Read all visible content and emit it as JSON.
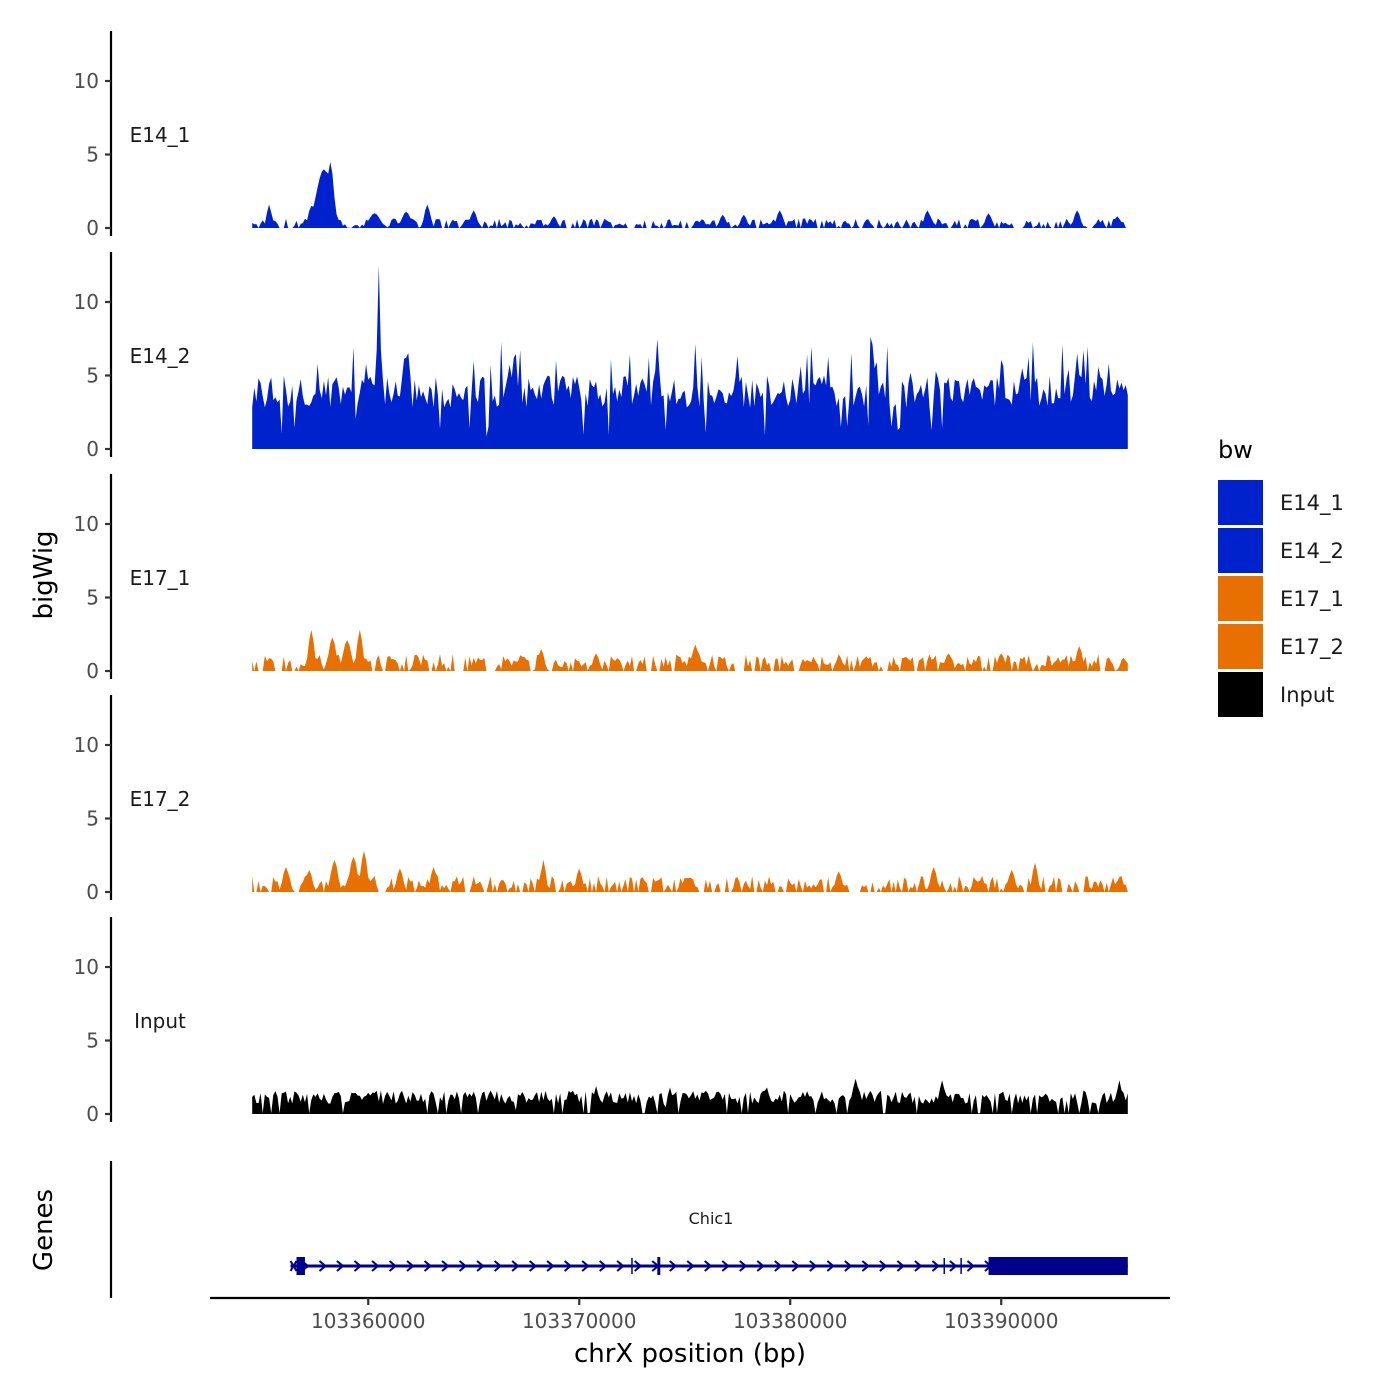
{
  "chart_data": {
    "type": "area",
    "title": "",
    "ylabel": "bigWig",
    "xlabel": "chrX position (bp)",
    "genes_label": "Genes",
    "ylim": [
      0,
      13
    ],
    "yticks": [
      0,
      5,
      10
    ],
    "xlim": [
      103352500,
      103398000
    ],
    "xticks": [
      103360000,
      103370000,
      103380000,
      103390000
    ],
    "signal_range": [
      103354500,
      103396000
    ],
    "tracks": [
      {
        "name": "E14_1",
        "color": "#0022CC",
        "baseline": 0.1,
        "peaks": [
          [
            103357900,
            4.0,
            350
          ],
          [
            103358200,
            4.5,
            160
          ],
          [
            103357300,
            1.5,
            140
          ],
          [
            103360300,
            1.0,
            250
          ],
          [
            103361800,
            1.1,
            200
          ],
          [
            103362800,
            1.6,
            130
          ],
          [
            103355300,
            1.6,
            110
          ],
          [
            103365000,
            1.2,
            140
          ],
          [
            103368800,
            0.8,
            140
          ],
          [
            103376800,
            0.9,
            140
          ],
          [
            103377800,
            0.9,
            140
          ],
          [
            103379500,
            1.2,
            140
          ],
          [
            103386500,
            1.2,
            140
          ],
          [
            103389400,
            1.0,
            140
          ],
          [
            103393600,
            1.2,
            140
          ],
          [
            103395500,
            0.8,
            140
          ]
        ]
      },
      {
        "name": "E14_2",
        "color": "#0022CC",
        "baseline": 2.8,
        "peaks": [
          [
            103360500,
            12.5,
            90
          ],
          [
            103360100,
            4.8,
            250
          ],
          [
            103359100,
            4.2,
            250
          ],
          [
            103366700,
            5.2,
            280
          ],
          [
            103373700,
            7.5,
            120
          ],
          [
            103384000,
            5.5,
            180
          ],
          [
            103385700,
            5.2,
            180
          ],
          [
            103391000,
            5.5,
            180
          ],
          [
            103393600,
            6.5,
            140
          ],
          [
            103395800,
            4.0,
            160
          ]
        ]
      },
      {
        "name": "E17_1",
        "color": "#E87000",
        "baseline": 0.25,
        "peaks": [
          [
            103357300,
            2.8,
            130
          ],
          [
            103358300,
            2.3,
            160
          ],
          [
            103359000,
            2.1,
            180
          ],
          [
            103359600,
            2.8,
            130
          ],
          [
            103362300,
            1.1,
            140
          ],
          [
            103366600,
            0.8,
            160
          ],
          [
            103368200,
            1.5,
            130
          ],
          [
            103370800,
            1.2,
            140
          ],
          [
            103375500,
            1.8,
            140
          ],
          [
            103383600,
            1.0,
            160
          ],
          [
            103387500,
            1.2,
            160
          ],
          [
            103390000,
            1.2,
            160
          ],
          [
            103393700,
            1.7,
            140
          ],
          [
            103395800,
            0.9,
            140
          ]
        ]
      },
      {
        "name": "E17_2",
        "color": "#E87000",
        "baseline": 0.2,
        "peaks": [
          [
            103356100,
            1.7,
            140
          ],
          [
            103357200,
            1.5,
            140
          ],
          [
            103358400,
            2.2,
            150
          ],
          [
            103359300,
            2.4,
            170
          ],
          [
            103359800,
            2.8,
            140
          ],
          [
            103361500,
            1.6,
            140
          ],
          [
            103363100,
            1.7,
            130
          ],
          [
            103368300,
            2.2,
            110
          ],
          [
            103370000,
            1.6,
            130
          ],
          [
            103382300,
            1.4,
            140
          ],
          [
            103386800,
            1.7,
            140
          ],
          [
            103390500,
            1.5,
            140
          ],
          [
            103391600,
            2.0,
            120
          ],
          [
            103395600,
            1.0,
            130
          ]
        ]
      },
      {
        "name": "Input",
        "color": "#000000",
        "baseline": 0.7,
        "peaks": [
          [
            103383100,
            2.4,
            140
          ],
          [
            103387200,
            2.3,
            130
          ],
          [
            103395600,
            2.3,
            120
          ],
          [
            103360900,
            1.5,
            160
          ],
          [
            103365800,
            1.6,
            160
          ],
          [
            103367300,
            1.5,
            160
          ],
          [
            103370800,
            1.9,
            120
          ],
          [
            103374300,
            1.8,
            120
          ],
          [
            103378900,
            1.8,
            120
          ],
          [
            103380600,
            1.5,
            140
          ]
        ]
      }
    ],
    "legend": {
      "title": "bw",
      "position": "right",
      "entries": [
        {
          "label": "E14_1",
          "color": "#0022CC"
        },
        {
          "label": "E14_2",
          "color": "#0022CC"
        },
        {
          "label": "E17_1",
          "color": "#E87000"
        },
        {
          "label": "E17_2",
          "color": "#E87000"
        },
        {
          "label": "Input",
          "color": "#000000"
        }
      ]
    },
    "gene": {
      "name": "Chic1",
      "strand": "+",
      "color": "#00008B",
      "start": 103356600,
      "end": 103396000,
      "exons": [
        [
          103356600,
          103357000
        ],
        [
          103373700,
          103373800
        ],
        [
          103389400,
          103396000
        ]
      ]
    }
  }
}
